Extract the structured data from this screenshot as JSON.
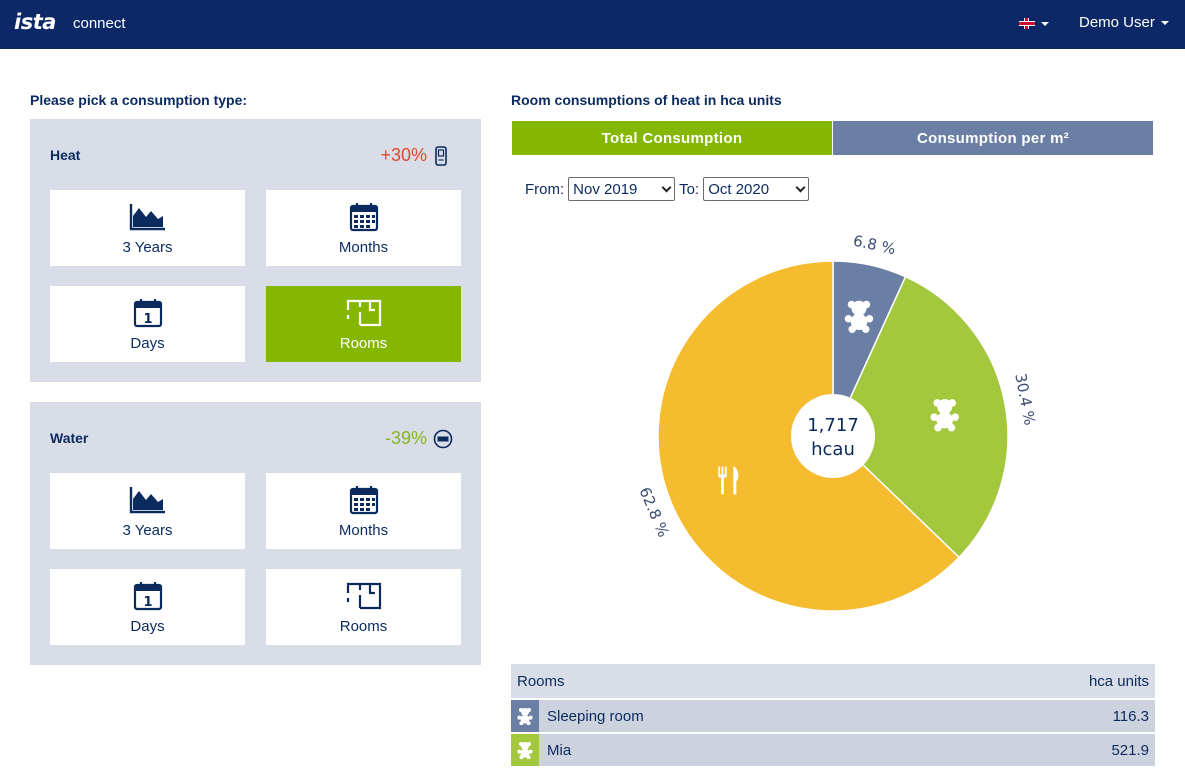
{
  "header": {
    "logo": "ista",
    "app_name": "connect",
    "user_label": "Demo User"
  },
  "left": {
    "title": "Please pick a consumption type:",
    "groups": [
      {
        "title": "Heat",
        "change": "+30%",
        "change_color": "#e04a2a",
        "device_icon": "heat-meter-icon",
        "tiles": [
          {
            "label": "3 Years",
            "icon": "area-chart-icon",
            "active": false
          },
          {
            "label": "Months",
            "icon": "calendar-icon",
            "active": false
          },
          {
            "label": "Days",
            "icon": "day-calendar-icon",
            "day_number": "1",
            "active": false
          },
          {
            "label": "Rooms",
            "icon": "floorplan-icon",
            "active": true
          }
        ]
      },
      {
        "title": "Water",
        "change": "-39%",
        "change_color": "#86b71f",
        "device_icon": "water-meter-icon",
        "tiles": [
          {
            "label": "3 Years",
            "icon": "area-chart-icon",
            "active": false
          },
          {
            "label": "Months",
            "icon": "calendar-icon",
            "active": false
          },
          {
            "label": "Days",
            "icon": "day-calendar-icon",
            "day_number": "1",
            "active": false
          },
          {
            "label": "Rooms",
            "icon": "floorplan-icon",
            "active": false
          }
        ]
      }
    ]
  },
  "right": {
    "title": "Room consumptions of heat in hca units",
    "tabs": [
      {
        "label": "Total Consumption",
        "active": true
      },
      {
        "label": "Consumption per m²",
        "active": false
      }
    ],
    "range": {
      "from_label": "From:",
      "from_value": "Nov 2019",
      "to_label": "To:",
      "to_value": "Oct 2020"
    },
    "table": {
      "col_room": "Rooms",
      "col_value": "hca units",
      "rows": [
        {
          "name": "Sleeping room",
          "value": "116.3",
          "color": "#6b7ea3",
          "icon": "teddy-bear-icon"
        },
        {
          "name": "Mia",
          "value": "521.9",
          "color": "#a3c83d",
          "icon": "teddy-bear-icon"
        }
      ]
    }
  },
  "chart_data": {
    "type": "pie",
    "center_value": "1,717",
    "center_unit": "hcau",
    "slices": [
      {
        "label": "6.8 %",
        "value": 6.8,
        "color": "#6b7ea3",
        "icon": "teddy-bear-icon"
      },
      {
        "label": "30.4 %",
        "value": 30.4,
        "color": "#a3c83d",
        "icon": "teddy-bear-icon"
      },
      {
        "label": "62.8 %",
        "value": 62.8,
        "color": "#f5bc30",
        "icon": "cutlery-icon"
      }
    ]
  }
}
